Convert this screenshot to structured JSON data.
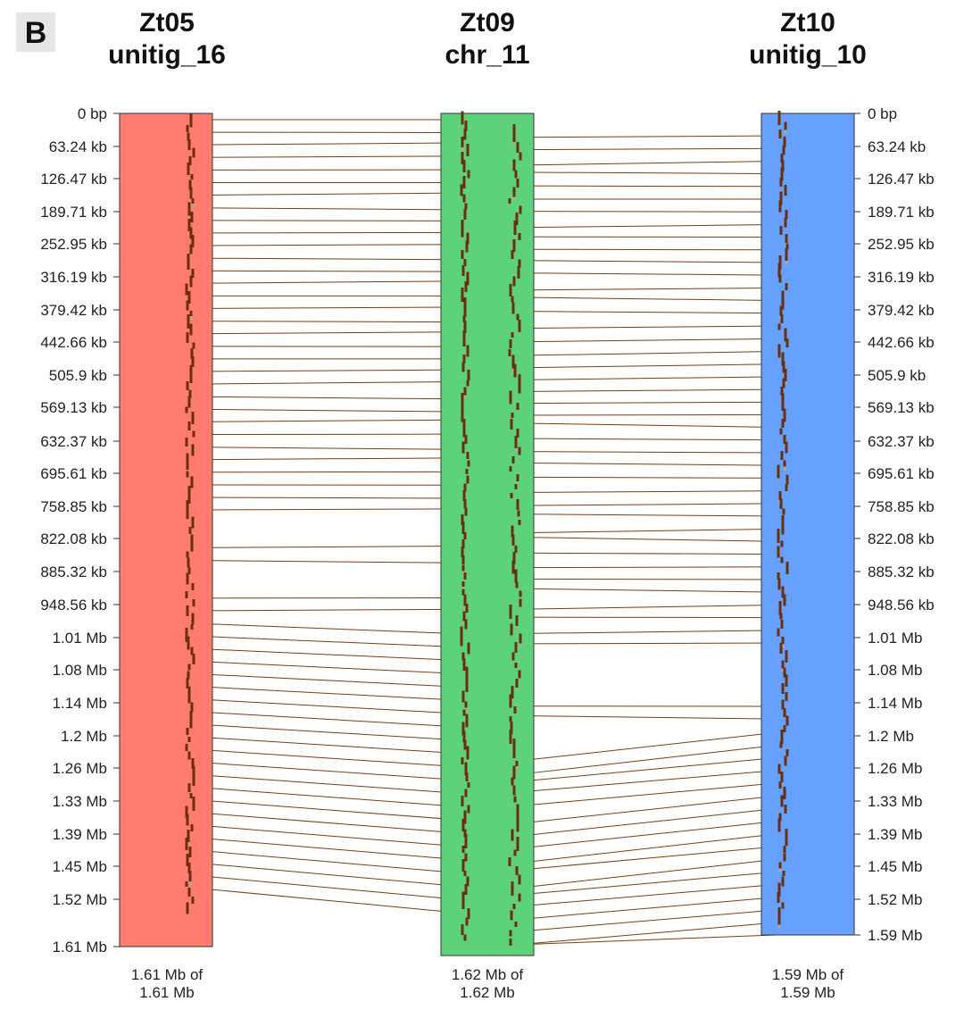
{
  "panel_label": "B",
  "contigs": [
    {
      "id": "Zt05",
      "name": "unitig_16",
      "summary_line1": "1.61 Mb of",
      "summary_line2": "1.61 Mb",
      "color": "#ff7c6e",
      "length_mb": 1.61
    },
    {
      "id": "Zt09",
      "name": "chr_11",
      "summary_line1": "1.62 Mb of",
      "summary_line2": "1.62 Mb",
      "color": "#5dd27a",
      "length_mb": 1.62
    },
    {
      "id": "Zt10",
      "name": "unitig_10",
      "summary_line1": "1.59 Mb of",
      "summary_line2": "1.59 Mb",
      "color": "#66a1ff",
      "length_mb": 1.59
    }
  ],
  "left_axis_ticks": [
    "0 bp",
    "63.24 kb",
    "126.47 kb",
    "189.71 kb",
    "252.95 kb",
    "316.19 kb",
    "379.42 kb",
    "442.66 kb",
    "505.9 kb",
    "569.13 kb",
    "632.37 kb",
    "695.61 kb",
    "758.85 kb",
    "822.08 kb",
    "885.32 kb",
    "948.56 kb",
    "1.01 Mb",
    "1.08 Mb",
    "1.14 Mb",
    "1.2 Mb",
    "1.26 Mb",
    "1.33 Mb",
    "1.39 Mb",
    "1.45 Mb",
    "1.52 Mb",
    "1.61 Mb"
  ],
  "right_axis_ticks": [
    "0 bp",
    "63.24 kb",
    "126.47 kb",
    "189.71 kb",
    "252.95 kb",
    "316.19 kb",
    "379.42 kb",
    "442.66 kb",
    "505.9 kb",
    "569.13 kb",
    "632.37 kb",
    "695.61 kb",
    "758.85 kb",
    "822.08 kb",
    "885.32 kb",
    "948.56 kb",
    "1.01 Mb",
    "1.08 Mb",
    "1.14 Mb",
    "1.2 Mb",
    "1.26 Mb",
    "1.33 Mb",
    "1.39 Mb",
    "1.45 Mb",
    "1.52 Mb",
    "1.59 Mb"
  ],
  "colors": {
    "gene_mark": "#6b2f0b",
    "link_line": "#7a3d12",
    "unmatched_mark": "#a9a9a9",
    "contig_border": "#333333",
    "axis_text": "#222222"
  }
}
